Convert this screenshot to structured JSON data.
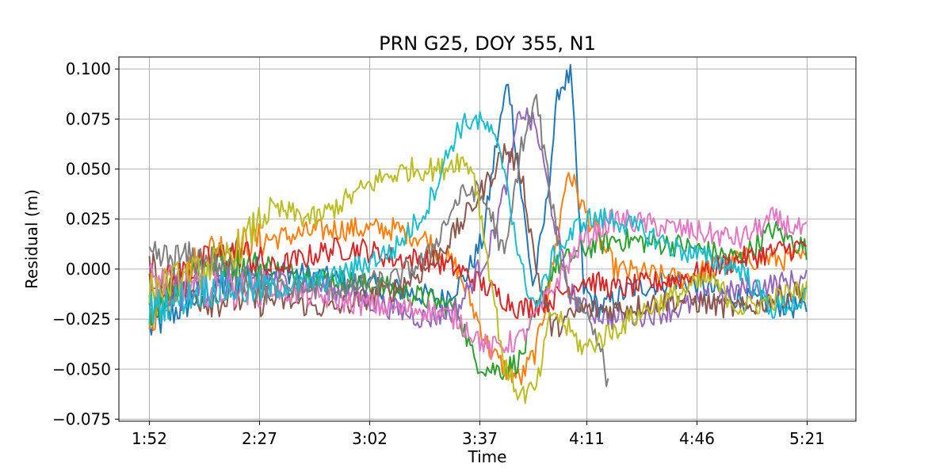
{
  "chart_data": {
    "type": "line",
    "title": "PRN G25, DOY 355, N1",
    "xlabel": "Time",
    "ylabel": "Residual (m)",
    "x_ticks": [
      "1:52",
      "2:27",
      "3:02",
      "3:37",
      "4:11",
      "4:46",
      "5:21"
    ],
    "x_tick_minutes": [
      112,
      147,
      182,
      217,
      251,
      286,
      321
    ],
    "y_ticks": [
      "0.100",
      "0.075",
      "0.050",
      "0.025",
      "0.000",
      "−0.025",
      "−0.050",
      "−0.075"
    ],
    "y_tick_values": [
      0.1,
      0.075,
      0.05,
      0.025,
      0.0,
      -0.025,
      -0.05,
      -0.075
    ],
    "xlim_minutes": [
      102.3,
      336.5
    ],
    "ylim": [
      -0.076,
      0.106
    ],
    "grid": true,
    "legend": "none",
    "series": [
      {
        "color": "#1f77b4",
        "x": [
          112,
          130,
          150,
          170,
          190,
          205,
          212,
          218,
          222,
          226,
          230,
          234,
          238,
          242,
          246,
          248,
          250,
          255,
          265,
          280,
          300,
          321
        ],
        "values": [
          -0.03,
          -0.01,
          0.0,
          -0.005,
          -0.01,
          -0.015,
          -0.005,
          0.015,
          0.06,
          0.095,
          0.04,
          -0.01,
          0.03,
          0.09,
          0.097,
          0.04,
          -0.01,
          -0.02,
          -0.01,
          -0.005,
          -0.015,
          -0.02
        ]
      },
      {
        "color": "#ff7f0e",
        "x": [
          112,
          130,
          150,
          170,
          190,
          200,
          210,
          215,
          220,
          225,
          230,
          235,
          240,
          245,
          250,
          260,
          280,
          300,
          321
        ],
        "values": [
          -0.025,
          0.01,
          0.015,
          0.02,
          0.02,
          0.015,
          0.0,
          -0.02,
          -0.04,
          -0.05,
          -0.055,
          -0.04,
          0.0,
          0.05,
          0.03,
          0.0,
          -0.005,
          0.005,
          0.005
        ]
      },
      {
        "color": "#2ca02c",
        "x": [
          112,
          130,
          150,
          170,
          190,
          200,
          210,
          215,
          220,
          225,
          230,
          240,
          250,
          260,
          280,
          300,
          310,
          321
        ],
        "values": [
          -0.02,
          0.005,
          0.0,
          -0.005,
          -0.01,
          -0.015,
          -0.02,
          -0.045,
          -0.05,
          -0.05,
          -0.045,
          0.0,
          0.01,
          0.015,
          0.012,
          0.005,
          0.02,
          0.01
        ]
      },
      {
        "color": "#d62728",
        "x": [
          112,
          125,
          140,
          150,
          160,
          170,
          180,
          190,
          200,
          210,
          220,
          230,
          240,
          250,
          260,
          280,
          300,
          321
        ],
        "values": [
          -0.01,
          0.0,
          0.01,
          0.0,
          0.005,
          0.01,
          0.01,
          0.005,
          0.005,
          0.0,
          -0.01,
          -0.02,
          -0.015,
          -0.005,
          -0.01,
          -0.005,
          0.005,
          0.012
        ]
      },
      {
        "color": "#9467bd",
        "x": [
          112,
          130,
          150,
          170,
          190,
          200,
          210,
          220,
          225,
          230,
          235,
          240,
          245,
          250,
          260,
          280,
          300,
          321
        ],
        "values": [
          -0.015,
          -0.01,
          -0.005,
          -0.01,
          -0.02,
          -0.025,
          -0.02,
          0.01,
          0.04,
          0.08,
          0.07,
          0.03,
          -0.01,
          -0.02,
          -0.025,
          -0.02,
          -0.01,
          -0.005
        ]
      },
      {
        "color": "#8c564b",
        "x": [
          112,
          130,
          150,
          170,
          190,
          200,
          210,
          220,
          225,
          230,
          235,
          240,
          250,
          260,
          280,
          300,
          321
        ],
        "values": [
          0.0,
          -0.015,
          -0.015,
          -0.02,
          -0.01,
          0.0,
          0.02,
          0.045,
          0.06,
          0.05,
          0.0,
          -0.03,
          -0.02,
          -0.02,
          -0.015,
          -0.02,
          -0.01
        ]
      },
      {
        "color": "#e377c2",
        "x": [
          112,
          130,
          150,
          170,
          190,
          200,
          210,
          220,
          230,
          240,
          250,
          260,
          280,
          300,
          310,
          321
        ],
        "values": [
          -0.005,
          -0.01,
          -0.01,
          -0.015,
          -0.02,
          -0.02,
          -0.025,
          -0.04,
          -0.035,
          -0.01,
          0.015,
          0.025,
          0.02,
          0.015,
          0.025,
          0.018
        ]
      },
      {
        "color": "#7f7f7f",
        "x": [
          112,
          130,
          150,
          170,
          190,
          200,
          205,
          210,
          215,
          220,
          225,
          230,
          235,
          240,
          245,
          250,
          255,
          258
        ],
        "values": [
          0.005,
          0.005,
          -0.01,
          -0.01,
          -0.005,
          0.005,
          0.02,
          0.035,
          0.04,
          0.03,
          0.005,
          0.06,
          0.085,
          0.03,
          -0.01,
          -0.02,
          -0.035,
          -0.062
        ]
      },
      {
        "color": "#bcbd22",
        "x": [
          112,
          130,
          140,
          150,
          165,
          175,
          185,
          195,
          205,
          210,
          215,
          220,
          225,
          230,
          235,
          240,
          250,
          270,
          290,
          300,
          321
        ],
        "values": [
          -0.01,
          0.0,
          0.01,
          0.03,
          0.025,
          0.035,
          0.045,
          0.05,
          0.05,
          0.055,
          0.05,
          0.0,
          -0.05,
          -0.063,
          -0.06,
          -0.02,
          -0.04,
          -0.02,
          -0.005,
          -0.02,
          -0.01
        ]
      },
      {
        "color": "#17becf",
        "x": [
          112,
          130,
          150,
          170,
          190,
          200,
          205,
          210,
          215,
          220,
          225,
          230,
          235,
          240,
          250,
          260,
          280,
          300,
          310,
          321
        ],
        "values": [
          -0.02,
          -0.01,
          -0.01,
          -0.005,
          0.01,
          0.03,
          0.05,
          0.07,
          0.075,
          0.07,
          0.05,
          0.0,
          -0.02,
          0.005,
          0.025,
          0.025,
          0.01,
          0.0,
          -0.02,
          -0.015
        ]
      }
    ]
  }
}
